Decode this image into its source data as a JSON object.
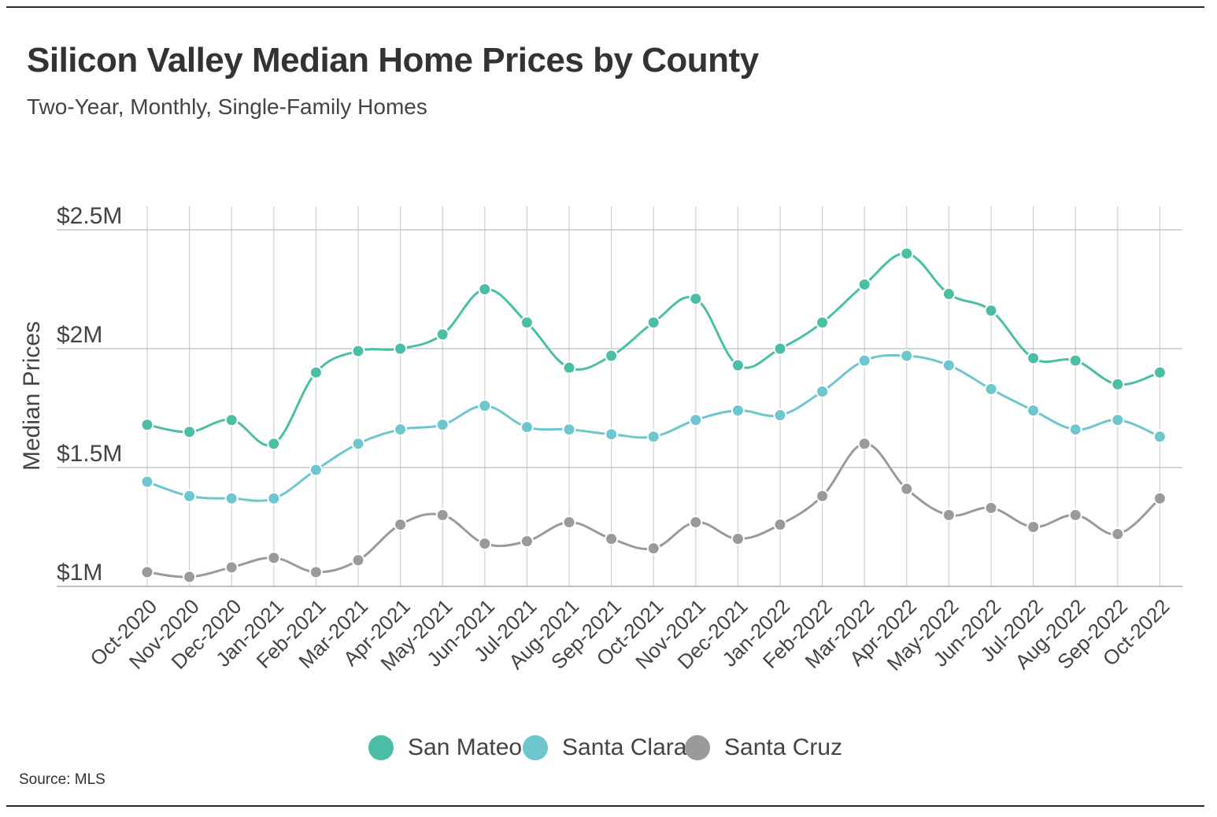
{
  "header": {
    "title": "Silicon Valley Median Home Prices by County",
    "subtitle": "Two-Year, Monthly, Single-Family Homes"
  },
  "footer": {
    "source": "Source: MLS"
  },
  "chart_data": {
    "type": "line",
    "title": "Silicon Valley Median Home Prices by County",
    "subtitle": "Two-Year, Monthly, Single-Family Homes",
    "xlabel": "",
    "ylabel": "Median Prices",
    "ylim": [
      1.0,
      2.5
    ],
    "y_ticks": [
      {
        "value": 1.0,
        "label": "$1M"
      },
      {
        "value": 1.5,
        "label": "$1.5M"
      },
      {
        "value": 2.0,
        "label": "$2M"
      },
      {
        "value": 2.5,
        "label": "$2.5M"
      }
    ],
    "y_unit": "millions of USD",
    "grid": true,
    "legend_position": "bottom-center",
    "categories": [
      "Oct-2020",
      "Nov-2020",
      "Dec-2020",
      "Jan-2021",
      "Feb-2021",
      "Mar-2021",
      "Apr-2021",
      "May-2021",
      "Jun-2021",
      "Jul-2021",
      "Aug-2021",
      "Sep-2021",
      "Oct-2021",
      "Nov-2021",
      "Dec-2021",
      "Jan-2022",
      "Feb-2022",
      "Mar-2022",
      "Apr-2022",
      "May-2022",
      "Jun-2022",
      "Jul-2022",
      "Aug-2022",
      "Sep-2022",
      "Oct-2022"
    ],
    "series": [
      {
        "name": "San Mateo",
        "color": "#4bbfa6",
        "values": [
          1.68,
          1.65,
          1.7,
          1.6,
          1.9,
          1.99,
          2.0,
          2.06,
          2.25,
          2.11,
          1.92,
          1.97,
          2.11,
          2.21,
          1.93,
          2.0,
          2.11,
          2.27,
          2.4,
          2.23,
          2.16,
          1.96,
          1.95,
          1.85,
          1.9
        ]
      },
      {
        "name": "Santa Clara",
        "color": "#6ec6cf",
        "values": [
          1.44,
          1.38,
          1.37,
          1.37,
          1.49,
          1.6,
          1.66,
          1.68,
          1.76,
          1.67,
          1.66,
          1.64,
          1.63,
          1.7,
          1.74,
          1.72,
          1.82,
          1.95,
          1.97,
          1.93,
          1.83,
          1.74,
          1.66,
          1.7,
          1.63
        ]
      },
      {
        "name": "Santa Cruz",
        "color": "#9a9a9a",
        "values": [
          1.06,
          1.04,
          1.08,
          1.12,
          1.06,
          1.11,
          1.26,
          1.3,
          1.18,
          1.19,
          1.27,
          1.2,
          1.16,
          1.27,
          1.2,
          1.26,
          1.38,
          1.6,
          1.41,
          1.3,
          1.33,
          1.25,
          1.3,
          1.22,
          1.37
        ]
      }
    ]
  }
}
